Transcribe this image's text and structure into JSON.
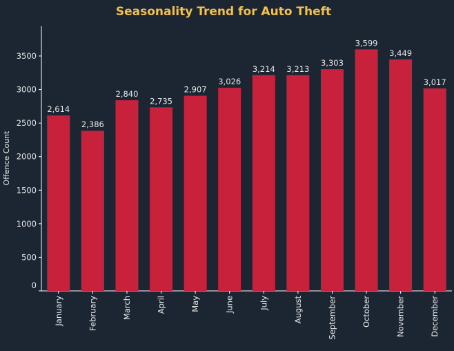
{
  "colors": {
    "background": "#1c2633",
    "bar": "#c8213c",
    "title": "#f2c14e",
    "text": "#e8e8e8",
    "axis": "#ffffff"
  },
  "chart_data": {
    "type": "bar",
    "title": "Seasonality Trend for Auto Theft",
    "xlabel": "",
    "ylabel": "Offence Count",
    "categories": [
      "January",
      "February",
      "March",
      "April",
      "May",
      "June",
      "July",
      "August",
      "September",
      "October",
      "November",
      "December"
    ],
    "values": [
      2614,
      2386,
      2840,
      2735,
      2907,
      3026,
      3214,
      3213,
      3303,
      3599,
      3449,
      3017
    ],
    "value_labels": [
      "2,614",
      "2,386",
      "2,840",
      "2,735",
      "2,907",
      "3,026",
      "3,214",
      "3,213",
      "3,303",
      "3,599",
      "3,449",
      "3,017"
    ],
    "ylim": [
      0,
      3900
    ],
    "yticks": [
      0,
      500,
      1000,
      1500,
      2000,
      2500,
      3000,
      3500
    ],
    "ytick_labels": [
      "0",
      "500",
      "1000",
      "1500",
      "2000",
      "2500",
      "3000",
      "3500"
    ],
    "grid": false,
    "legend": "none"
  }
}
